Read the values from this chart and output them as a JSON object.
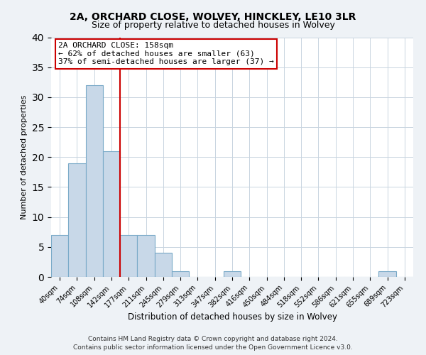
{
  "title": "2A, ORCHARD CLOSE, WOLVEY, HINCKLEY, LE10 3LR",
  "subtitle": "Size of property relative to detached houses in Wolvey",
  "xlabel": "Distribution of detached houses by size in Wolvey",
  "ylabel": "Number of detached properties",
  "bin_labels": [
    "40sqm",
    "74sqm",
    "108sqm",
    "142sqm",
    "177sqm",
    "211sqm",
    "245sqm",
    "279sqm",
    "313sqm",
    "347sqm",
    "382sqm",
    "416sqm",
    "450sqm",
    "484sqm",
    "518sqm",
    "552sqm",
    "586sqm",
    "621sqm",
    "655sqm",
    "689sqm",
    "723sqm"
  ],
  "bar_values": [
    7,
    19,
    32,
    21,
    7,
    7,
    4,
    1,
    0,
    0,
    1,
    0,
    0,
    0,
    0,
    0,
    0,
    0,
    0,
    1,
    0
  ],
  "bar_color": "#c8d8e8",
  "bar_edge_color": "#7aaac8",
  "ylim": [
    0,
    40
  ],
  "yticks": [
    0,
    5,
    10,
    15,
    20,
    25,
    30,
    35,
    40
  ],
  "ref_line_x": 3.5,
  "ref_line_color": "#cc0000",
  "annotation_title": "2A ORCHARD CLOSE: 158sqm",
  "annotation_line1": "← 62% of detached houses are smaller (63)",
  "annotation_line2": "37% of semi-detached houses are larger (37) →",
  "annotation_box_color": "#ffffff",
  "annotation_box_edge": "#cc0000",
  "footer1": "Contains HM Land Registry data © Crown copyright and database right 2024.",
  "footer2": "Contains public sector information licensed under the Open Government Licence v3.0.",
  "bg_color": "#eef2f6",
  "plot_bg_color": "#ffffff"
}
